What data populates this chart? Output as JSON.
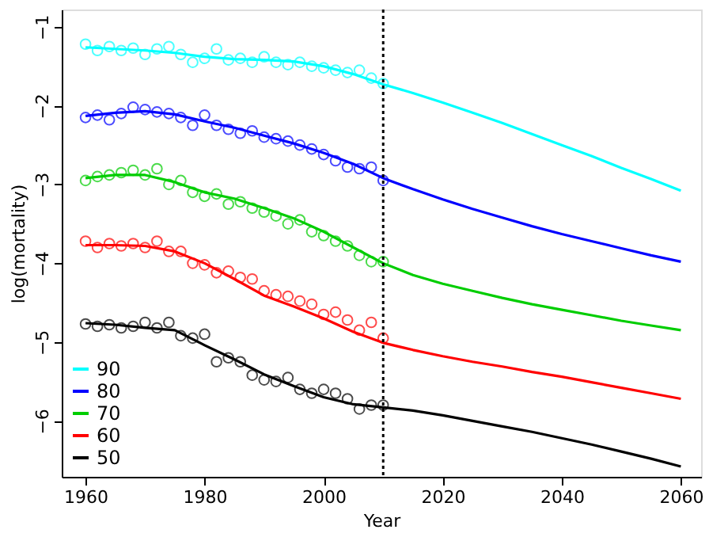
{
  "chart_data": {
    "type": "line",
    "xlabel": "Year",
    "ylabel": "log(mortality)",
    "xlim": [
      1956,
      2063.4
    ],
    "ylim": [
      -6.71,
      -0.78
    ],
    "xticks": [
      1960,
      1980,
      2000,
      2020,
      2040,
      2060
    ],
    "yticks": [
      -1,
      -2,
      -3,
      -4,
      -5,
      -6
    ],
    "grid": false,
    "legend": "bottom left",
    "line_style": "solid",
    "x": [
      1960,
      1965,
      1970,
      1975,
      1980,
      1985,
      1990,
      1995,
      2000,
      2005,
      2010,
      2015,
      2020,
      2025,
      2030,
      2035,
      2040,
      2045,
      2050,
      2055,
      2060
    ],
    "ref_lines": [
      {
        "axis": "x",
        "value": 2010,
        "label": null,
        "color": "#000000",
        "line_style": "dotted"
      }
    ],
    "series": [
      {
        "name": "90",
        "color": "#00ffff",
        "values": [
          -1.26,
          -1.28,
          -1.3,
          -1.33,
          -1.38,
          -1.41,
          -1.42,
          -1.44,
          -1.5,
          -1.6,
          -1.73,
          -1.84,
          -1.96,
          -2.09,
          -2.22,
          -2.36,
          -2.5,
          -2.64,
          -2.79,
          -2.93,
          -3.08
        ]
      },
      {
        "name": "80",
        "color": "#0000ff",
        "values": [
          -2.13,
          -2.09,
          -2.07,
          -2.11,
          -2.2,
          -2.28,
          -2.38,
          -2.48,
          -2.6,
          -2.74,
          -2.92,
          -3.06,
          -3.19,
          -3.31,
          -3.42,
          -3.53,
          -3.63,
          -3.72,
          -3.81,
          -3.9,
          -3.98
        ]
      },
      {
        "name": "70",
        "color": "#00cd00",
        "values": [
          -2.92,
          -2.88,
          -2.88,
          -2.97,
          -3.1,
          -3.18,
          -3.3,
          -3.43,
          -3.6,
          -3.8,
          -4.0,
          -4.15,
          -4.26,
          -4.35,
          -4.44,
          -4.52,
          -4.59,
          -4.66,
          -4.73,
          -4.79,
          -4.85
        ]
      },
      {
        "name": "60",
        "color": "#ff0000",
        "values": [
          -3.77,
          -3.77,
          -3.78,
          -3.85,
          -4.0,
          -4.2,
          -4.41,
          -4.55,
          -4.7,
          -4.87,
          -5.01,
          -5.1,
          -5.18,
          -5.25,
          -5.31,
          -5.38,
          -5.44,
          -5.51,
          -5.58,
          -5.65,
          -5.72
        ]
      },
      {
        "name": "50",
        "color": "#000000",
        "values": [
          -4.76,
          -4.78,
          -4.82,
          -4.85,
          -5.04,
          -5.22,
          -5.41,
          -5.56,
          -5.7,
          -5.79,
          -5.83,
          -5.87,
          -5.93,
          -6.0,
          -6.07,
          -6.14,
          -6.22,
          -6.3,
          -6.39,
          -6.48,
          -6.58
        ]
      },
      {
        "type": "scatter",
        "marker": "circle",
        "color": "#00ffff",
        "x": [
          1960,
          1962,
          1964,
          1966,
          1968,
          1970,
          1972,
          1974,
          1976,
          1978,
          1980,
          1982,
          1984,
          1986,
          1988,
          1990,
          1992,
          1994,
          1996,
          1998,
          2000,
          2002,
          2004,
          2006,
          2008,
          2010
        ],
        "values": [
          -1.22,
          -1.3,
          -1.25,
          -1.3,
          -1.27,
          -1.35,
          -1.28,
          -1.25,
          -1.35,
          -1.45,
          -1.4,
          -1.28,
          -1.42,
          -1.4,
          -1.45,
          -1.38,
          -1.45,
          -1.48,
          -1.45,
          -1.5,
          -1.52,
          -1.55,
          -1.58,
          -1.55,
          -1.65,
          -1.72
        ]
      },
      {
        "type": "scatter",
        "marker": "circle",
        "color": "#0000ff",
        "x": [
          1960,
          1962,
          1964,
          1966,
          1968,
          1970,
          1972,
          1974,
          1976,
          1978,
          1980,
          1982,
          1984,
          1986,
          1988,
          1990,
          1992,
          1994,
          1996,
          1998,
          2000,
          2002,
          2004,
          2006,
          2008,
          2010
        ],
        "values": [
          -2.15,
          -2.12,
          -2.18,
          -2.1,
          -2.02,
          -2.05,
          -2.08,
          -2.1,
          -2.15,
          -2.25,
          -2.12,
          -2.25,
          -2.3,
          -2.35,
          -2.32,
          -2.4,
          -2.42,
          -2.45,
          -2.5,
          -2.55,
          -2.62,
          -2.7,
          -2.78,
          -2.8,
          -2.78,
          -2.95
        ]
      },
      {
        "type": "scatter",
        "marker": "circle",
        "color": "#00cd00",
        "x": [
          1960,
          1962,
          1964,
          1966,
          1968,
          1970,
          1972,
          1974,
          1976,
          1978,
          1980,
          1982,
          1984,
          1986,
          1988,
          1990,
          1992,
          1994,
          1996,
          1998,
          2000,
          2002,
          2004,
          2006,
          2008,
          2010
        ],
        "values": [
          -2.95,
          -2.9,
          -2.88,
          -2.85,
          -2.82,
          -2.88,
          -2.8,
          -3.0,
          -2.95,
          -3.1,
          -3.15,
          -3.12,
          -3.25,
          -3.22,
          -3.3,
          -3.35,
          -3.4,
          -3.5,
          -3.45,
          -3.6,
          -3.65,
          -3.72,
          -3.78,
          -3.9,
          -3.98,
          -3.98
        ]
      },
      {
        "type": "scatter",
        "marker": "circle",
        "color": "#ff0000",
        "x": [
          1960,
          1962,
          1964,
          1966,
          1968,
          1970,
          1972,
          1974,
          1976,
          1978,
          1980,
          1982,
          1984,
          1986,
          1988,
          1990,
          1992,
          1994,
          1996,
          1998,
          2000,
          2002,
          2004,
          2006,
          2008,
          2010
        ],
        "values": [
          -3.72,
          -3.8,
          -3.75,
          -3.78,
          -3.75,
          -3.8,
          -3.72,
          -3.85,
          -3.85,
          -4.0,
          -4.02,
          -4.12,
          -4.1,
          -4.18,
          -4.2,
          -4.35,
          -4.4,
          -4.42,
          -4.48,
          -4.52,
          -4.65,
          -4.62,
          -4.72,
          -4.85,
          -4.75,
          -4.95
        ]
      },
      {
        "type": "scatter",
        "marker": "circle",
        "color": "#000000",
        "x": [
          1960,
          1962,
          1964,
          1966,
          1968,
          1970,
          1972,
          1974,
          1976,
          1978,
          1980,
          1982,
          1984,
          1986,
          1988,
          1990,
          1992,
          1994,
          1996,
          1998,
          2000,
          2002,
          2004,
          2006,
          2008,
          2010
        ],
        "values": [
          -4.77,
          -4.8,
          -4.78,
          -4.82,
          -4.8,
          -4.75,
          -4.82,
          -4.75,
          -4.92,
          -4.95,
          -4.9,
          -5.25,
          -5.2,
          -5.25,
          -5.42,
          -5.48,
          -5.5,
          -5.45,
          -5.6,
          -5.65,
          -5.6,
          -5.65,
          -5.72,
          -5.85,
          -5.8,
          -5.8
        ]
      }
    ]
  }
}
